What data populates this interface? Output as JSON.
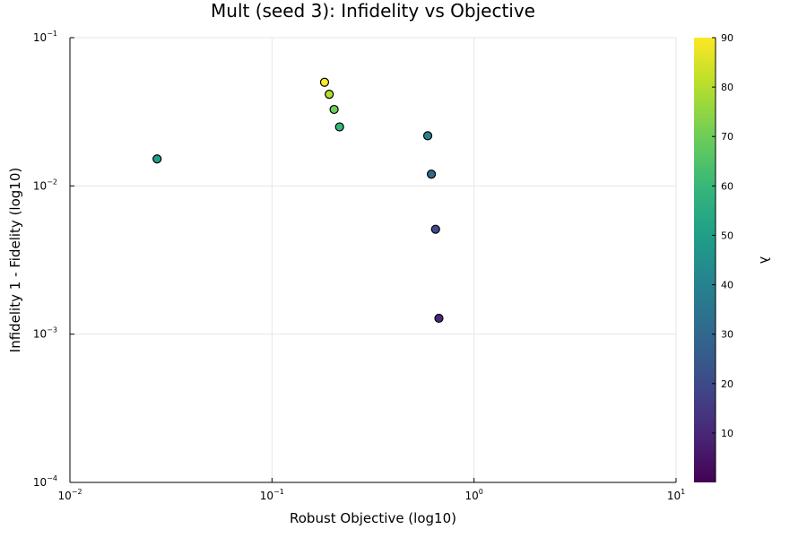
{
  "chart_data": {
    "type": "scatter",
    "title": "Mult (seed 3): Infidelity vs Objective",
    "xlabel": "Robust Objective (log10)",
    "ylabel": "Infidelity 1 - Fidelity (log10)",
    "xscale": "log",
    "yscale": "log",
    "xlim": [
      0.01,
      10
    ],
    "ylim": [
      0.0001,
      0.1
    ],
    "x_ticks": [
      {
        "base": "10",
        "exp": "−2"
      },
      {
        "base": "10",
        "exp": "−1"
      },
      {
        "base": "10",
        "exp": "0"
      },
      {
        "base": "10",
        "exp": "1"
      }
    ],
    "y_ticks": [
      {
        "base": "10",
        "exp": "−4"
      },
      {
        "base": "10",
        "exp": "−3"
      },
      {
        "base": "10",
        "exp": "−2"
      },
      {
        "base": "10",
        "exp": "−1"
      }
    ],
    "grid": true,
    "legend": "none",
    "colorbar": {
      "label": "λ",
      "range": [
        0,
        90
      ],
      "ticks": [
        "10",
        "20",
        "30",
        "40",
        "50",
        "60",
        "70",
        "80",
        "90"
      ],
      "colormap": "viridis"
    },
    "points": [
      {
        "x": 0.027,
        "y": 0.0152,
        "lambda": 50
      },
      {
        "x": 0.182,
        "y": 0.05,
        "lambda": 90
      },
      {
        "x": 0.192,
        "y": 0.0415,
        "lambda": 80
      },
      {
        "x": 0.203,
        "y": 0.0328,
        "lambda": 70
      },
      {
        "x": 0.216,
        "y": 0.025,
        "lambda": 60
      },
      {
        "x": 0.59,
        "y": 0.0218,
        "lambda": 40
      },
      {
        "x": 0.615,
        "y": 0.012,
        "lambda": 30
      },
      {
        "x": 0.645,
        "y": 0.0051,
        "lambda": 20
      },
      {
        "x": 0.67,
        "y": 0.00128,
        "lambda": 10
      }
    ]
  }
}
